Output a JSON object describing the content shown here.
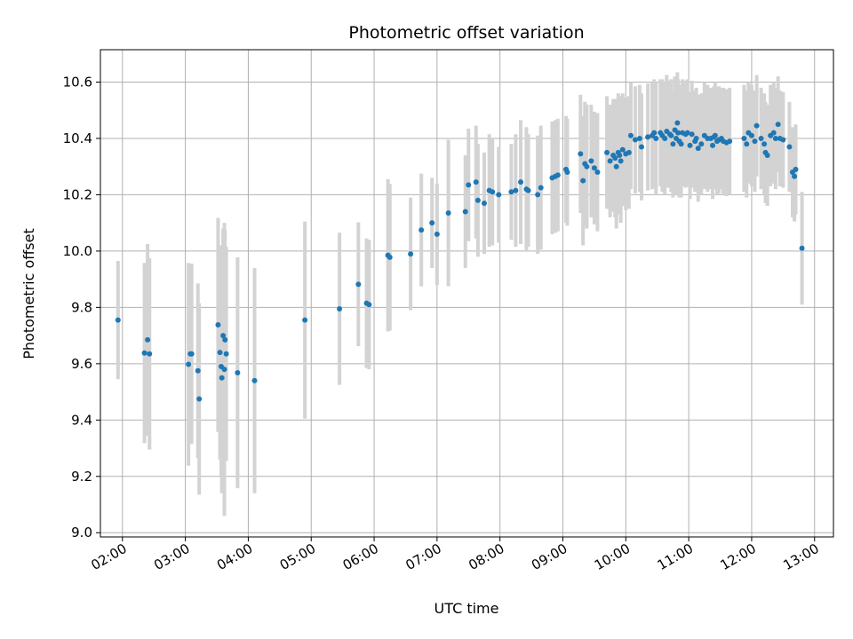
{
  "chart_data": {
    "type": "scatter",
    "title": "Photometric offset variation",
    "xlabel": "UTC time",
    "ylabel": "Photometric offset",
    "x_unit": "hours UTC",
    "xlim": [
      1.65,
      13.3
    ],
    "ylim": [
      8.985,
      10.715
    ],
    "x_ticks": [
      2,
      3,
      4,
      5,
      6,
      7,
      8,
      9,
      10,
      11,
      12,
      13
    ],
    "x_tick_labels": [
      "02:00",
      "03:00",
      "04:00",
      "05:00",
      "06:00",
      "07:00",
      "08:00",
      "09:00",
      "10:00",
      "11:00",
      "12:00",
      "13:00"
    ],
    "y_ticks": [
      9.0,
      9.2,
      9.4,
      9.6,
      9.8,
      10.0,
      10.2,
      10.4,
      10.6
    ],
    "y_tick_labels": [
      "9.0",
      "9.2",
      "9.4",
      "9.6",
      "9.8",
      "10.0",
      "10.2",
      "10.4",
      "10.6"
    ],
    "grid": true,
    "legend": "none",
    "colors": {
      "point": "#1f77b4",
      "errorbar": "#d3d3d3",
      "grid": "#b0b0b0"
    },
    "series": [
      {
        "x": [
          1.93,
          2.35,
          2.4,
          2.43,
          3.05,
          3.08,
          3.1,
          3.2,
          3.22,
          3.52,
          3.55,
          3.57,
          3.58,
          3.6,
          3.62,
          3.63,
          3.65,
          3.83,
          4.1,
          4.9,
          5.45,
          5.75,
          5.88,
          5.92,
          6.22,
          6.25,
          6.58,
          6.75,
          6.92,
          7.0,
          7.18,
          7.45,
          7.5,
          7.62,
          7.65,
          7.75,
          7.83,
          7.88,
          7.98,
          8.18,
          8.25,
          8.33,
          8.42,
          8.45,
          8.6,
          8.65,
          8.83,
          8.88,
          8.92,
          9.05,
          9.07,
          9.28,
          9.32,
          9.35,
          9.38,
          9.45,
          9.5,
          9.55,
          9.7,
          9.75,
          9.8,
          9.83,
          9.85,
          9.88,
          9.9,
          9.92,
          9.95,
          10.0,
          10.05,
          10.08,
          10.15,
          10.22,
          10.25,
          10.35,
          10.42,
          10.45,
          10.48,
          10.55,
          10.58,
          10.62,
          10.65,
          10.7,
          10.72,
          10.75,
          10.78,
          10.8,
          10.82,
          10.83,
          10.85,
          10.88,
          10.9,
          10.95,
          10.98,
          11.02,
          11.05,
          11.1,
          11.12,
          11.15,
          11.2,
          11.25,
          11.3,
          11.35,
          11.38,
          11.4,
          11.42,
          11.45,
          11.48,
          11.52,
          11.55,
          11.6,
          11.65,
          11.88,
          11.92,
          11.95,
          12.0,
          12.05,
          12.08,
          12.15,
          12.2,
          12.22,
          12.25,
          12.3,
          12.35,
          12.38,
          12.42,
          12.45,
          12.5,
          12.6,
          12.65,
          12.68,
          12.7,
          12.8
        ],
        "y": [
          9.755,
          9.638,
          9.685,
          9.635,
          9.598,
          9.635,
          9.635,
          9.575,
          9.475,
          9.738,
          9.64,
          9.59,
          9.55,
          9.7,
          9.58,
          9.685,
          9.635,
          9.568,
          9.54,
          9.755,
          9.795,
          9.882,
          9.815,
          9.81,
          9.985,
          9.978,
          9.99,
          10.075,
          10.1,
          10.06,
          10.135,
          10.14,
          10.235,
          10.245,
          10.18,
          10.17,
          10.215,
          10.21,
          10.2,
          10.21,
          10.215,
          10.245,
          10.22,
          10.215,
          10.2,
          10.225,
          10.26,
          10.265,
          10.27,
          10.29,
          10.28,
          10.345,
          10.25,
          10.31,
          10.3,
          10.32,
          10.295,
          10.28,
          10.35,
          10.32,
          10.34,
          10.33,
          10.3,
          10.35,
          10.34,
          10.32,
          10.36,
          10.345,
          10.35,
          10.41,
          10.395,
          10.4,
          10.37,
          10.405,
          10.41,
          10.42,
          10.4,
          10.42,
          10.41,
          10.4,
          10.425,
          10.415,
          10.41,
          10.38,
          10.43,
          10.4,
          10.455,
          10.42,
          10.39,
          10.38,
          10.42,
          10.415,
          10.42,
          10.375,
          10.415,
          10.39,
          10.4,
          10.365,
          10.38,
          10.41,
          10.4,
          10.4,
          10.375,
          10.405,
          10.41,
          10.39,
          10.395,
          10.4,
          10.39,
          10.385,
          10.39,
          10.4,
          10.38,
          10.42,
          10.41,
          10.39,
          10.445,
          10.4,
          10.38,
          10.35,
          10.34,
          10.41,
          10.42,
          10.4,
          10.45,
          10.4,
          10.395,
          10.37,
          10.28,
          10.265,
          10.29,
          10.01
        ],
        "yerr": [
          0.21,
          0.32,
          0.34,
          0.34,
          0.36,
          0.32,
          0.32,
          0.31,
          0.34,
          0.38,
          0.38,
          0.39,
          0.41,
          0.38,
          0.52,
          0.39,
          0.38,
          0.41,
          0.4,
          0.35,
          0.27,
          0.22,
          0.23,
          0.23,
          0.27,
          0.26,
          0.2,
          0.2,
          0.16,
          0.18,
          0.26,
          0.2,
          0.2,
          0.2,
          0.2,
          0.18,
          0.2,
          0.19,
          0.17,
          0.17,
          0.2,
          0.22,
          0.22,
          0.2,
          0.21,
          0.22,
          0.2,
          0.2,
          0.2,
          0.19,
          0.19,
          0.21,
          0.23,
          0.22,
          0.22,
          0.2,
          0.2,
          0.21,
          0.2,
          0.2,
          0.2,
          0.21,
          0.22,
          0.21,
          0.21,
          0.22,
          0.2,
          0.2,
          0.2,
          0.19,
          0.19,
          0.19,
          0.19,
          0.19,
          0.19,
          0.19,
          0.2,
          0.19,
          0.2,
          0.2,
          0.2,
          0.19,
          0.2,
          0.19,
          0.19,
          0.2,
          0.18,
          0.19,
          0.2,
          0.19,
          0.19,
          0.19,
          0.19,
          0.19,
          0.19,
          0.18,
          0.18,
          0.19,
          0.18,
          0.19,
          0.19,
          0.18,
          0.19,
          0.18,
          0.19,
          0.19,
          0.19,
          0.18,
          0.19,
          0.19,
          0.19,
          0.19,
          0.19,
          0.18,
          0.18,
          0.18,
          0.18,
          0.18,
          0.18,
          0.18,
          0.18,
          0.18,
          0.18,
          0.18,
          0.17,
          0.17,
          0.17,
          0.16,
          0.16,
          0.16,
          0.16,
          0.2
        ]
      }
    ]
  }
}
